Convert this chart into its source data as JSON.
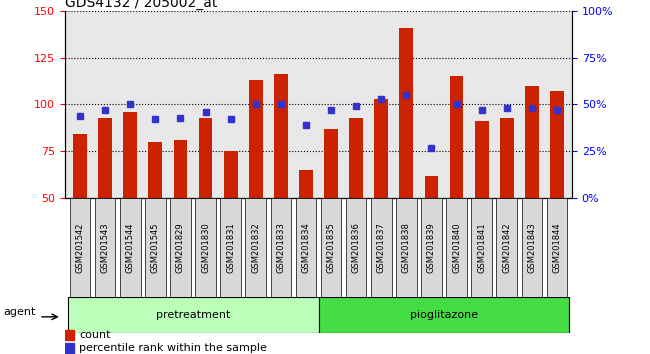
{
  "title": "GDS4132 / 205002_at",
  "samples": [
    "GSM201542",
    "GSM201543",
    "GSM201544",
    "GSM201545",
    "GSM201829",
    "GSM201830",
    "GSM201831",
    "GSM201832",
    "GSM201833",
    "GSM201834",
    "GSM201835",
    "GSM201836",
    "GSM201837",
    "GSM201838",
    "GSM201839",
    "GSM201840",
    "GSM201841",
    "GSM201842",
    "GSM201843",
    "GSM201844"
  ],
  "count_values": [
    84,
    93,
    96,
    80,
    81,
    93,
    75,
    113,
    116,
    65,
    87,
    93,
    103,
    141,
    62,
    115,
    91,
    93,
    110,
    107
  ],
  "percentile_values": [
    44,
    47,
    50,
    42,
    43,
    46,
    42,
    50,
    50,
    39,
    47,
    49,
    53,
    55,
    27,
    50,
    47,
    48,
    48,
    47
  ],
  "ylim_left": [
    50,
    150
  ],
  "ylim_right": [
    0,
    100
  ],
  "yticks_left": [
    50,
    75,
    100,
    125,
    150
  ],
  "yticks_right": [
    0,
    25,
    50,
    75,
    100
  ],
  "ytick_labels_right": [
    "0%",
    "25%",
    "50%",
    "75%",
    "100%"
  ],
  "bar_color": "#cc2200",
  "dot_color": "#3333cc",
  "pretreatment_color": "#bbffbb",
  "pioglitazone_color": "#44dd44",
  "xlabel_agent": "agent",
  "pretreatment_label": "pretreatment",
  "pioglitazone_label": "pioglitazone",
  "legend_count": "count",
  "legend_percentile": "percentile rank within the sample",
  "bar_width": 0.55,
  "title_fontsize": 10,
  "tick_fontsize": 8,
  "dot_size": 5
}
